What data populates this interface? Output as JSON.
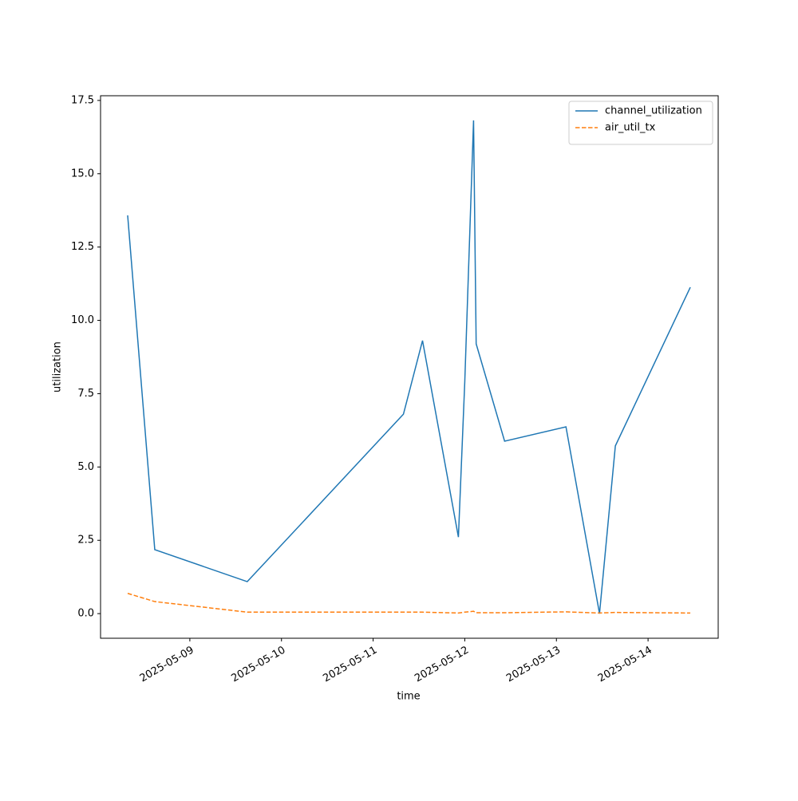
{
  "chart_data": {
    "type": "line",
    "x_label": "time",
    "y_label": "utilization",
    "x": [
      "2025-05-08T07:43",
      "2025-05-08T14:49",
      "2025-05-09T15:02",
      "2025-05-11T07:56",
      "2025-05-11T12:56",
      "2025-05-11T22:20",
      "2025-05-12T00:00",
      "2025-05-12T02:18",
      "2025-05-12T02:59",
      "2025-05-12T10:26",
      "2025-05-13T02:30",
      "2025-05-13T11:17",
      "2025-05-13T15:26",
      "2025-05-14T11:04"
    ],
    "series": [
      {
        "name": "channel_utilization",
        "color": "#1f77b4",
        "dash": false,
        "values": [
          13.58,
          2.18,
          1.09,
          6.8,
          9.31,
          2.61,
          7.9,
          16.82,
          9.2,
          5.88,
          6.37,
          0.0,
          5.72,
          11.13
        ]
      },
      {
        "name": "air_util_tx",
        "color": "#ff7f0e",
        "dash": true,
        "values": [
          0.69,
          0.41,
          0.05,
          0.05,
          0.05,
          0.02,
          0.05,
          0.08,
          0.03,
          0.03,
          0.06,
          0.02,
          0.04,
          0.02
        ]
      }
    ],
    "xlim": [
      "2025-05-08T00:37",
      "2025-05-14T18:22"
    ],
    "xticks": [
      "2025-05-09",
      "2025-05-10",
      "2025-05-11",
      "2025-05-12",
      "2025-05-13",
      "2025-05-14"
    ],
    "ylim": [
      -0.84,
      17.66
    ],
    "yticks": [
      {
        "value": 0,
        "label": "0.0"
      },
      2.5,
      {
        "value": 5,
        "label": "5.0"
      },
      7.5,
      {
        "value": 10,
        "label": "10.0"
      },
      12.5,
      {
        "value": 15,
        "label": "15.0"
      },
      17.5
    ],
    "legend": "upper right",
    "grid": false
  }
}
